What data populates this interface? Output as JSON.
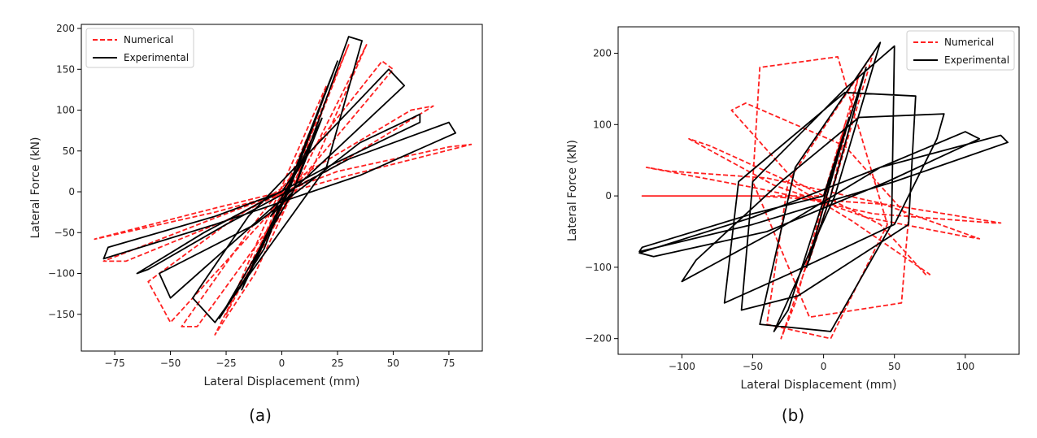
{
  "chart_data": [
    {
      "type": "line",
      "caption": "(a)",
      "xlabel": "Lateral Displacement (mm)",
      "ylabel": "Lateral Force (kN)",
      "xlim": [
        -90,
        90
      ],
      "ylim": [
        -195,
        205
      ],
      "xticks": [
        -75,
        -50,
        -25,
        0,
        25,
        50,
        75
      ],
      "yticks": [
        -150,
        -100,
        -50,
        0,
        50,
        100,
        150,
        200
      ],
      "legend": "top-left",
      "grid": false,
      "series": [
        {
          "name": "Numerical",
          "color": "#ff2020",
          "style": "dashed",
          "x": [
            0,
            8,
            -5,
            2,
            12,
            -8,
            -15,
            5,
            20,
            -10,
            -25,
            4,
            30,
            4,
            -30,
            -12,
            5,
            38,
            14,
            -38,
            -45,
            -10,
            45,
            50,
            10,
            -50,
            -60,
            -20,
            15,
            58,
            68,
            20,
            -25,
            -70,
            -80,
            -28,
            25,
            75,
            85,
            30,
            -30,
            -84,
            -80,
            -30,
            0
          ],
          "y": [
            0,
            30,
            -25,
            0,
            70,
            -55,
            -100,
            0,
            130,
            -55,
            -150,
            0,
            180,
            10,
            -175,
            -100,
            0,
            180,
            30,
            -165,
            -165,
            -30,
            160,
            150,
            20,
            -160,
            -110,
            -30,
            30,
            100,
            105,
            25,
            -35,
            -85,
            -85,
            -30,
            25,
            55,
            58,
            20,
            -25,
            -58,
            -55,
            -20,
            0
          ]
        },
        {
          "name": "Experimental",
          "color": "#000000",
          "style": "solid",
          "x": [
            0,
            10,
            -5,
            5,
            18,
            -10,
            -18,
            3,
            25,
            -8,
            -28,
            5,
            30,
            36,
            20,
            -30,
            -40,
            -15,
            48,
            55,
            12,
            -50,
            -55,
            -12,
            35,
            62,
            62,
            20,
            -35,
            -65,
            -60,
            -25,
            30,
            75,
            78,
            35,
            -30,
            -80,
            -78,
            -30,
            0
          ],
          "y": [
            0,
            40,
            -30,
            0,
            90,
            -70,
            -120,
            0,
            160,
            -70,
            -155,
            0,
            190,
            185,
            30,
            -160,
            -130,
            -30,
            150,
            130,
            20,
            -130,
            -100,
            -40,
            60,
            95,
            85,
            30,
            -50,
            -100,
            -95,
            -40,
            40,
            85,
            72,
            20,
            -40,
            -82,
            -68,
            -30,
            0
          ]
        }
      ]
    },
    {
      "type": "line",
      "caption": "(b)",
      "xlabel": "Lateral Displacement (mm)",
      "ylabel": "Lateral Force (kN)",
      "xlim": [
        -145,
        138
      ],
      "ylim": [
        -222,
        237
      ],
      "xticks": [
        -100,
        -50,
        0,
        50,
        100
      ],
      "yticks": [
        -200,
        -100,
        0,
        100,
        200
      ],
      "legend": "top-right",
      "grid": false,
      "series": [
        {
          "name": "Numerical",
          "color": "#ff2020",
          "style": "dashed",
          "x": [
            0,
            15,
            -10,
            5,
            25,
            -20,
            -30,
            5,
            35,
            -25,
            -40,
            5,
            45,
            10,
            -45,
            -50,
            -10,
            55,
            60,
            15,
            -55,
            -65,
            -20,
            40,
            72,
            75,
            20,
            -30,
            -80,
            -95,
            -35,
            30,
            95,
            110,
            40,
            -40,
            -110,
            -125,
            -45,
            35,
            120,
            125,
            45,
            -45,
            -128,
            -125,
            -50,
            0
          ],
          "y": [
            0,
            100,
            -90,
            0,
            170,
            -150,
            -200,
            0,
            200,
            20,
            -180,
            -200,
            -40,
            195,
            180,
            20,
            -170,
            -150,
            -30,
            70,
            130,
            120,
            20,
            -40,
            -110,
            -110,
            -35,
            25,
            70,
            80,
            15,
            -30,
            -55,
            -60,
            -10,
            25,
            35,
            40,
            10,
            -25,
            -38,
            -38,
            -12,
            0,
            0,
            0,
            0,
            0
          ]
        },
        {
          "name": "Experimental",
          "color": "#000000",
          "style": "solid",
          "x": [
            0,
            18,
            -12,
            5,
            30,
            -25,
            -35,
            8,
            40,
            -20,
            -45,
            5,
            48,
            50,
            15,
            -50,
            -58,
            -18,
            60,
            65,
            15,
            -60,
            -70,
            -25,
            50,
            80,
            85,
            25,
            -30,
            -90,
            -100,
            -35,
            40,
            100,
            110,
            45,
            -40,
            -120,
            -130,
            -50,
            40,
            125,
            130,
            50,
            -50,
            -130,
            -128,
            -50,
            0
          ],
          "y": [
            0,
            110,
            -100,
            0,
            180,
            -160,
            -190,
            0,
            215,
            40,
            -180,
            -190,
            -40,
            210,
            150,
            20,
            -160,
            -140,
            -40,
            140,
            145,
            20,
            -150,
            -110,
            -40,
            80,
            115,
            110,
            20,
            -90,
            -120,
            -50,
            40,
            90,
            80,
            20,
            -50,
            -85,
            -80,
            -30,
            40,
            85,
            75,
            20,
            -40,
            -78,
            -72,
            -25,
            0
          ]
        }
      ]
    }
  ]
}
